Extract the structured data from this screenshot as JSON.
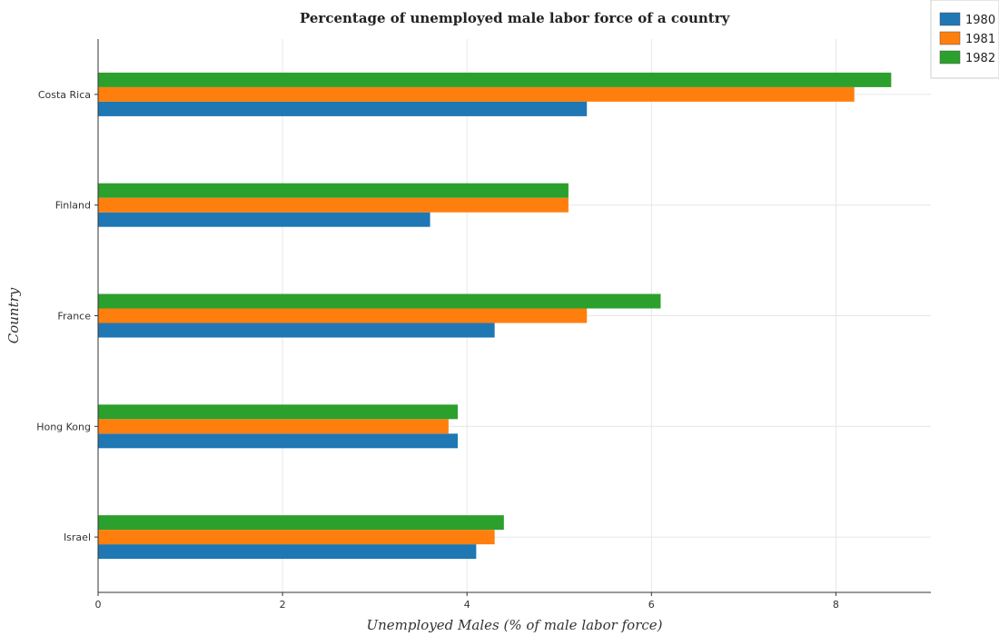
{
  "chart_data": {
    "type": "bar",
    "orientation": "horizontal",
    "title": "Percentage of unemployed male labor force of a country",
    "xlabel": "Unemployed Males (% of male labor force)",
    "ylabel": "Country",
    "categories": [
      "Costa Rica",
      "Finland",
      "France",
      "Hong Kong",
      "Israel"
    ],
    "series": [
      {
        "name": "1980",
        "color": "#1f77b4",
        "values": [
          5.3,
          3.6,
          4.3,
          3.9,
          4.1
        ]
      },
      {
        "name": "1981",
        "color": "#ff7f0e",
        "values": [
          8.2,
          5.1,
          5.3,
          3.8,
          4.3
        ]
      },
      {
        "name": "1982",
        "color": "#2ca02c",
        "values": [
          8.6,
          5.1,
          6.1,
          3.9,
          4.4
        ]
      }
    ],
    "xlim": [
      0,
      9.03
    ],
    "xticks": [
      0,
      2,
      4,
      6,
      8
    ],
    "xtick_labels": [
      "0",
      "2",
      "4",
      "6",
      "8"
    ],
    "grid": true,
    "legend_position": "top-right"
  }
}
